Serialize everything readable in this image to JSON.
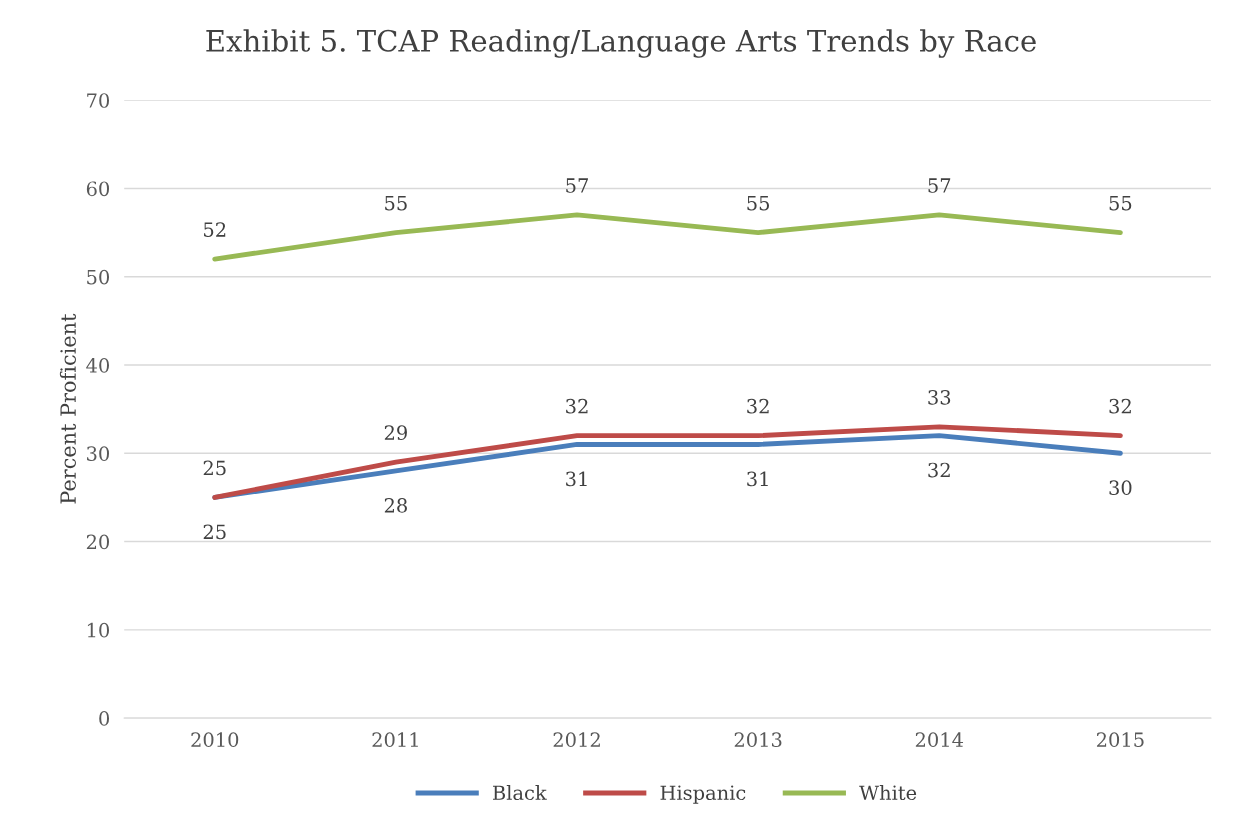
{
  "chart_data": {
    "type": "line",
    "title": "Exhibit 5. TCAP Reading/Language Arts Trends by Race",
    "ylabel": "Percent Proficient",
    "categories": [
      "2010",
      "2011",
      "2012",
      "2013",
      "2014",
      "2015"
    ],
    "series": [
      {
        "name": "Black",
        "color": "#4a7ebb",
        "values": [
          25,
          28,
          31,
          31,
          32,
          30
        ]
      },
      {
        "name": "Hispanic",
        "color": "#be4b48",
        "values": [
          25,
          29,
          32,
          32,
          33,
          32
        ]
      },
      {
        "name": "White",
        "color": "#98b954",
        "values": [
          52,
          55,
          57,
          55,
          57,
          55
        ]
      }
    ],
    "ylim": [
      0,
      70
    ],
    "yticks": [
      0,
      10,
      20,
      30,
      40,
      50,
      60,
      70
    ],
    "grid": "y",
    "legend": "bottom",
    "data_labels": true,
    "marker": "none",
    "line_style": "solid"
  }
}
